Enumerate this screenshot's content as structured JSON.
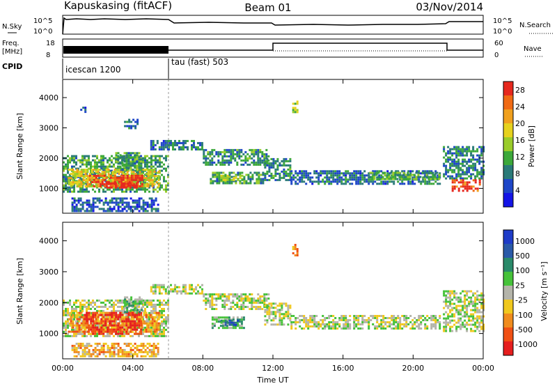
{
  "header": {
    "station": "Kapuskasing (fitACF)",
    "beam": "Beam 01",
    "date": "03/Nov/2014"
  },
  "top_panels": {
    "nsky_label": "N.Sky",
    "nsearch_label": "N.Search",
    "noise_ticks": [
      "10^5",
      "10^0"
    ],
    "freq_label": "Freq.",
    "freq_unit": "[MHz]",
    "freq_ticks": [
      "18",
      "8"
    ],
    "nave_label": "Nave",
    "nave_ticks": [
      "60",
      "0"
    ],
    "cpid_label": "CPID",
    "cpid_modes": [
      {
        "name": "icescan 1200",
        "start_hour": 0
      },
      {
        "name": "tau (fast) 503",
        "start_hour": 6
      }
    ]
  },
  "colors": {
    "power_scale": [
      "#1414e6",
      "#1e46c8",
      "#2a7a78",
      "#3ca83a",
      "#9acc2a",
      "#e6d21e",
      "#f0a01e",
      "#f06a14",
      "#e6281e"
    ],
    "velocity_scale": [
      "#1e3cc8",
      "#2a5aa8",
      "#2a8a6a",
      "#46c23a",
      "#b4b4aa",
      "#f0c81e",
      "#f08c1e",
      "#f05014",
      "#e61e1e"
    ],
    "line": "#000000"
  },
  "chart_data": [
    {
      "type": "heatmap",
      "panel": "power",
      "xlabel": "",
      "ylabel": "Slant Range [km]",
      "xlim": [
        0,
        24
      ],
      "ylim": [
        180,
        4600
      ],
      "yticks": [
        1000,
        2000,
        3000,
        4000
      ],
      "colorbar_label": "Power [dB]",
      "colorbar_ticks": [
        4,
        8,
        12,
        16,
        20,
        24,
        28
      ],
      "colorbar_range": [
        0,
        30
      ],
      "regions": [
        {
          "t0": 0.0,
          "t1": 6.0,
          "r0": 900,
          "r1": 2100,
          "level": 0.35
        },
        {
          "t0": 0.3,
          "t1": 5.5,
          "r0": 1050,
          "r1": 1650,
          "level": 0.6
        },
        {
          "t0": 1.5,
          "t1": 4.5,
          "r0": 1050,
          "r1": 1450,
          "level": 0.92
        },
        {
          "t0": 2.5,
          "t1": 4.2,
          "r0": 1000,
          "r1": 1200,
          "level": 1.0
        },
        {
          "t0": 3.0,
          "t1": 4.5,
          "r0": 1600,
          "r1": 2200,
          "level": 0.35
        },
        {
          "t0": 5.0,
          "t1": 6.0,
          "r0": 2300,
          "r1": 2600,
          "level": 0.25
        },
        {
          "t0": 3.5,
          "t1": 4.3,
          "r0": 3000,
          "r1": 3300,
          "level": 0.25
        },
        {
          "t0": 1.0,
          "t1": 1.3,
          "r0": 3500,
          "r1": 3700,
          "level": 0.2
        },
        {
          "t0": 6.0,
          "t1": 8.0,
          "r0": 2300,
          "r1": 2600,
          "level": 0.3
        },
        {
          "t0": 8.0,
          "t1": 11.8,
          "r0": 1800,
          "r1": 2300,
          "level": 0.32
        },
        {
          "t0": 8.4,
          "t1": 11.5,
          "r0": 1150,
          "r1": 1550,
          "level": 0.35
        },
        {
          "t0": 9.0,
          "t1": 10.2,
          "r0": 1250,
          "r1": 1450,
          "level": 0.55
        },
        {
          "t0": 11.5,
          "t1": 13.0,
          "r0": 1300,
          "r1": 2000,
          "level": 0.3
        },
        {
          "t0": 13.0,
          "t1": 21.5,
          "r0": 1150,
          "r1": 1600,
          "level": 0.25
        },
        {
          "t0": 17.5,
          "t1": 21.5,
          "r0": 1300,
          "r1": 1550,
          "level": 0.4
        },
        {
          "t0": 21.7,
          "t1": 24.0,
          "r0": 1300,
          "r1": 2400,
          "level": 0.28
        },
        {
          "t0": 22.2,
          "t1": 23.8,
          "r0": 950,
          "r1": 1300,
          "level": 0.9
        },
        {
          "t0": 13.1,
          "t1": 13.4,
          "r0": 3500,
          "r1": 3900,
          "level": 0.5
        },
        {
          "t0": 0.5,
          "t1": 5.5,
          "r0": 250,
          "r1": 700,
          "level": 0.2
        }
      ]
    },
    {
      "type": "heatmap",
      "panel": "velocity",
      "xlabel": "Time UT",
      "ylabel": "Slant Range [km]",
      "xlim": [
        0,
        24
      ],
      "ylim": [
        180,
        4600
      ],
      "xticks": [
        "00:00",
        "04:00",
        "08:00",
        "12:00",
        "16:00",
        "20:00",
        "00:00"
      ],
      "yticks": [
        1000,
        2000,
        3000,
        4000
      ],
      "colorbar_label": "Velocity [m s⁻¹]",
      "colorbar_ticks": [
        1000,
        500,
        100,
        25,
        -25,
        -100,
        -500,
        -1000
      ],
      "regions": [
        {
          "t0": 0.0,
          "t1": 6.0,
          "r0": 900,
          "r1": 2100,
          "level": 0.5
        },
        {
          "t0": 0.3,
          "t1": 5.5,
          "r0": 1050,
          "r1": 1700,
          "level": 0.7
        },
        {
          "t0": 1.2,
          "t1": 4.5,
          "r0": 1000,
          "r1": 1700,
          "level": 0.9
        },
        {
          "t0": 3.5,
          "t1": 4.5,
          "r0": 1700,
          "r1": 2200,
          "level": 0.4
        },
        {
          "t0": 5.0,
          "t1": 6.0,
          "r0": 2300,
          "r1": 2600,
          "level": 0.5
        },
        {
          "t0": 6.0,
          "t1": 8.0,
          "r0": 2300,
          "r1": 2600,
          "level": 0.5
        },
        {
          "t0": 8.0,
          "t1": 11.8,
          "r0": 1800,
          "r1": 2300,
          "level": 0.5
        },
        {
          "t0": 8.5,
          "t1": 10.3,
          "r0": 1150,
          "r1": 1550,
          "level": 0.4
        },
        {
          "t0": 9.0,
          "t1": 10.0,
          "r0": 1250,
          "r1": 1450,
          "level": 0.2
        },
        {
          "t0": 11.5,
          "t1": 13.0,
          "r0": 1300,
          "r1": 2000,
          "level": 0.5
        },
        {
          "t0": 13.0,
          "t1": 21.5,
          "r0": 1150,
          "r1": 1600,
          "level": 0.5
        },
        {
          "t0": 21.7,
          "t1": 24.0,
          "r0": 1100,
          "r1": 2400,
          "level": 0.5
        },
        {
          "t0": 13.1,
          "t1": 13.4,
          "r0": 3500,
          "r1": 3900,
          "level": 0.75
        },
        {
          "t0": 0.5,
          "t1": 5.5,
          "r0": 250,
          "r1": 700,
          "level": 0.65
        }
      ]
    }
  ]
}
